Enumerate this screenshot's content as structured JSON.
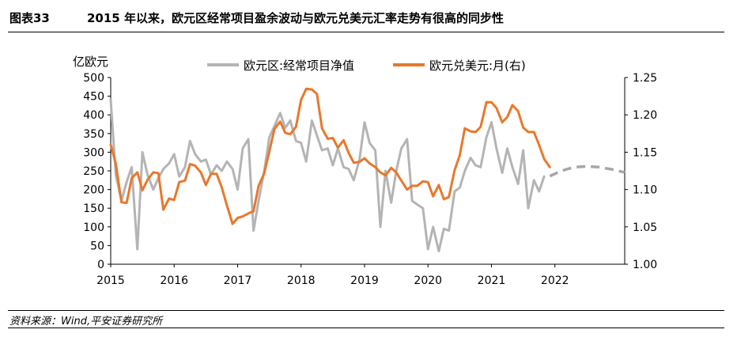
{
  "figure": {
    "label": "图表33",
    "title": "2015 年以来，欧元区经常项目盈余波动与欧元兑美元汇率走势有很高的同步性",
    "source": "资料来源：Wind,平安证券研究所"
  },
  "chart_data": {
    "type": "line",
    "left_axis": {
      "label": "亿欧元",
      "ylim": [
        0,
        500
      ],
      "ticks": [
        0,
        50,
        100,
        150,
        200,
        250,
        300,
        350,
        400,
        450,
        500
      ]
    },
    "right_axis": {
      "label": "",
      "ylim": [
        1.0,
        1.25
      ],
      "ticks": [
        "1.00",
        "1.05",
        "1.10",
        "1.15",
        "1.20",
        "1.25"
      ]
    },
    "x_axis": {
      "ticks": [
        "2015",
        "2016",
        "2017",
        "2018",
        "2019",
        "2020",
        "2021",
        "2022"
      ],
      "xlim": [
        2015.0,
        2023.1
      ]
    },
    "grid": false,
    "legend_position": "top",
    "series": [
      {
        "name": "欧元区:经常项目净值",
        "axis": "left",
        "color": "#b4b4b4",
        "style": "solid",
        "x": [
          2015.0,
          2015.08,
          2015.17,
          2015.25,
          2015.33,
          2015.42,
          2015.5,
          2015.58,
          2015.67,
          2015.75,
          2015.83,
          2015.92,
          2016.0,
          2016.08,
          2016.17,
          2016.25,
          2016.33,
          2016.42,
          2016.5,
          2016.58,
          2016.67,
          2016.75,
          2016.83,
          2016.92,
          2017.0,
          2017.08,
          2017.17,
          2017.25,
          2017.33,
          2017.42,
          2017.5,
          2017.58,
          2017.67,
          2017.75,
          2017.83,
          2017.92,
          2018.0,
          2018.08,
          2018.17,
          2018.25,
          2018.33,
          2018.42,
          2018.5,
          2018.58,
          2018.67,
          2018.75,
          2018.83,
          2018.92,
          2019.0,
          2019.08,
          2019.17,
          2019.25,
          2019.33,
          2019.42,
          2019.5,
          2019.58,
          2019.67,
          2019.75,
          2019.83,
          2019.92,
          2020.0,
          2020.08,
          2020.17,
          2020.25,
          2020.33,
          2020.42,
          2020.5,
          2020.58,
          2020.67,
          2020.75,
          2020.83,
          2020.92,
          2021.0,
          2021.08,
          2021.17,
          2021.25,
          2021.33,
          2021.42,
          2021.5,
          2021.58,
          2021.67,
          2021.75,
          2021.83
        ],
        "values": [
          440,
          240,
          170,
          220,
          260,
          40,
          300,
          240,
          200,
          230,
          255,
          270,
          295,
          235,
          260,
          330,
          295,
          275,
          280,
          240,
          265,
          250,
          275,
          255,
          200,
          310,
          335,
          90,
          170,
          250,
          340,
          370,
          405,
          365,
          385,
          330,
          325,
          275,
          385,
          345,
          305,
          310,
          265,
          310,
          260,
          255,
          225,
          280,
          380,
          325,
          305,
          100,
          250,
          165,
          250,
          310,
          335,
          170,
          160,
          150,
          40,
          100,
          35,
          95,
          90,
          195,
          205,
          250,
          285,
          265,
          260,
          340,
          380,
          310,
          245,
          310,
          260,
          215,
          305,
          150,
          225,
          195,
          235
        ]
      },
      {
        "name": "欧元兑美元:月(右)",
        "axis": "right",
        "color": "#e8782d",
        "style": "solid",
        "x": [
          2015.0,
          2015.08,
          2015.17,
          2015.25,
          2015.33,
          2015.42,
          2015.5,
          2015.58,
          2015.67,
          2015.75,
          2015.83,
          2015.92,
          2016.0,
          2016.08,
          2016.17,
          2016.25,
          2016.33,
          2016.42,
          2016.5,
          2016.58,
          2016.67,
          2016.75,
          2016.83,
          2016.92,
          2017.0,
          2017.08,
          2017.17,
          2017.25,
          2017.33,
          2017.42,
          2017.5,
          2017.58,
          2017.67,
          2017.75,
          2017.83,
          2017.92,
          2018.0,
          2018.08,
          2018.17,
          2018.25,
          2018.33,
          2018.42,
          2018.5,
          2018.58,
          2018.67,
          2018.75,
          2018.83,
          2018.92,
          2019.0,
          2019.08,
          2019.17,
          2019.25,
          2019.33,
          2019.42,
          2019.5,
          2019.58,
          2019.67,
          2019.75,
          2019.83,
          2019.92,
          2020.0,
          2020.08,
          2020.17,
          2020.25,
          2020.33,
          2020.42,
          2020.5,
          2020.58,
          2020.67,
          2020.75,
          2020.83,
          2020.92,
          2021.0,
          2021.08,
          2021.17,
          2021.25,
          2021.33,
          2021.42,
          2021.5,
          2021.58,
          2021.67,
          2021.75,
          2021.83,
          2021.92
        ],
        "values": [
          1.16,
          1.135,
          1.083,
          1.082,
          1.115,
          1.123,
          1.099,
          1.113,
          1.123,
          1.122,
          1.073,
          1.088,
          1.086,
          1.11,
          1.112,
          1.134,
          1.132,
          1.123,
          1.106,
          1.121,
          1.121,
          1.103,
          1.079,
          1.054,
          1.062,
          1.064,
          1.068,
          1.071,
          1.105,
          1.122,
          1.151,
          1.181,
          1.191,
          1.176,
          1.174,
          1.184,
          1.22,
          1.235,
          1.234,
          1.228,
          1.182,
          1.168,
          1.169,
          1.156,
          1.166,
          1.149,
          1.136,
          1.137,
          1.142,
          1.135,
          1.13,
          1.123,
          1.119,
          1.129,
          1.123,
          1.112,
          1.1,
          1.105,
          1.105,
          1.111,
          1.11,
          1.091,
          1.106,
          1.087,
          1.09,
          1.126,
          1.146,
          1.182,
          1.178,
          1.177,
          1.184,
          1.217,
          1.217,
          1.209,
          1.19,
          1.197,
          1.213,
          1.205,
          1.183,
          1.177,
          1.177,
          1.16,
          1.141,
          1.13
        ]
      },
      {
        "axis": "right",
        "color": "#a6a6a6",
        "style": "dashed",
        "x": [
          2021.92,
          2022.1,
          2022.3,
          2022.5,
          2022.7,
          2022.9,
          2023.1
        ],
        "values": [
          1.118,
          1.125,
          1.13,
          1.131,
          1.13,
          1.127,
          1.123
        ]
      }
    ]
  }
}
